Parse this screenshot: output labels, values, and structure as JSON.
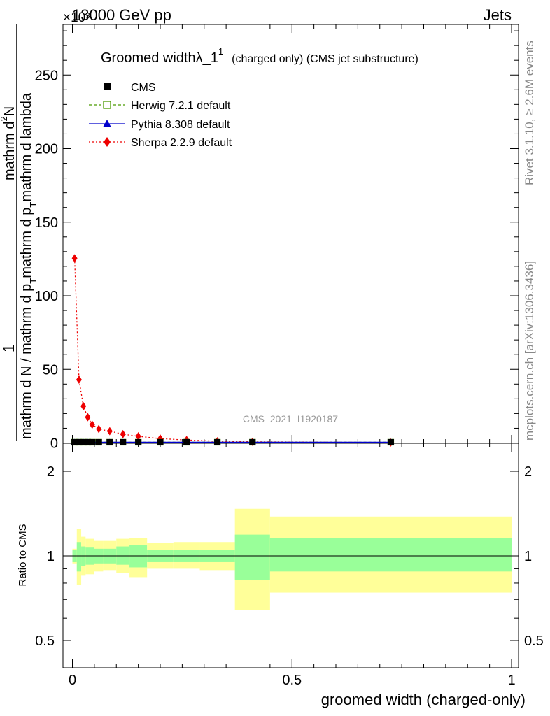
{
  "header": {
    "left": "13000 GeV pp",
    "right": "Jets",
    "exponent": "×10³"
  },
  "side_text": {
    "rivet": "Rivet 3.1.10, ≥ 2.6M events",
    "mcplots": "mcplots.cern.ch [arXiv:1306.3436]"
  },
  "watermark": "CMS_2021_I1920187",
  "chart_data": [
    {
      "type": "line",
      "title": "Groomed widthλ_1¹ (charged only) (CMS jet substructure)",
      "title_main": "Groomed widthλ_1",
      "title_sup": "1",
      "title_rest": "(charged only) (CMS jet substructure)",
      "ylabel_top": "1",
      "ylabel_numerator": "mathrm d²N",
      "ylabel_numerator_lines": [
        "mathrm d",
        "N"
      ],
      "ylabel_numerator_sup": "2",
      "ylabel_denominator": "mathrm d N / mathrm d p_T mathrm d p_T mathrm d lambda",
      "ylabel_denominator_line1": "mathrm d N / mathrm d p",
      "ylabel_denominator_line2": "mathrm d p",
      "ylabel_denominator_line2_tail": "mathrm d lambda",
      "ylabel_sub": "T",
      "xlim": [
        0,
        1
      ],
      "ylim": [
        0,
        285
      ],
      "y_ticks": [
        "0",
        "50",
        "100",
        "150",
        "200",
        "250"
      ],
      "legend_position": "top-left",
      "series": [
        {
          "name": "CMS",
          "color": "#000000",
          "marker": "square-filled",
          "x": [
            0.005,
            0.015,
            0.025,
            0.035,
            0.045,
            0.06,
            0.085,
            0.115,
            0.15,
            0.2,
            0.26,
            0.33,
            0.41,
            0.725
          ],
          "y": [
            0.5,
            0.5,
            0.5,
            0.5,
            0.5,
            0.5,
            0.5,
            0.5,
            0.5,
            0.5,
            0.5,
            0.5,
            0.5,
            0.5
          ]
        },
        {
          "name": "Herwig 7.2.1 default",
          "color": "#4a9a00",
          "marker": "square-open",
          "line": "dashed",
          "x": [
            0.005,
            0.015,
            0.025,
            0.035,
            0.045,
            0.06,
            0.085,
            0.115,
            0.15,
            0.2,
            0.26,
            0.33,
            0.41,
            0.725
          ],
          "y": [
            0.5,
            0.5,
            0.5,
            0.5,
            0.5,
            0.5,
            0.5,
            0.5,
            0.5,
            0.5,
            0.5,
            0.5,
            0.5,
            0.5
          ]
        },
        {
          "name": "Pythia 8.308 default",
          "color": "#0000cc",
          "marker": "triangle-filled",
          "line": "solid",
          "x": [
            0.005,
            0.015,
            0.025,
            0.035,
            0.045,
            0.06,
            0.085,
            0.115,
            0.15,
            0.2,
            0.26,
            0.33,
            0.41,
            0.725
          ],
          "y": [
            0.5,
            0.5,
            0.5,
            0.5,
            0.5,
            0.5,
            0.5,
            0.5,
            0.5,
            0.5,
            0.5,
            0.5,
            0.5,
            0.5
          ]
        },
        {
          "name": "Sherpa 2.2.9 default",
          "color": "#ee0000",
          "marker": "diamond-filled",
          "line": "dotted",
          "x": [
            0.005,
            0.015,
            0.025,
            0.035,
            0.045,
            0.06,
            0.085,
            0.115,
            0.15,
            0.2,
            0.26,
            0.33,
            0.41,
            0.725
          ],
          "y": [
            125.5,
            43,
            25,
            17.5,
            12.5,
            9.5,
            8,
            6,
            4.5,
            3,
            2,
            1.2,
            0.8,
            0.3
          ]
        }
      ]
    },
    {
      "type": "area",
      "ylabel": "Ratio to CMS",
      "xlabel": "groomed width (charged-only)",
      "xlim": [
        -0.025,
        1.015
      ],
      "x_ticks": [
        "0",
        "0.5",
        "1"
      ],
      "ylim": [
        0.4,
        2.4
      ],
      "y_log": true,
      "y_ticks": [
        "0.5",
        "1",
        "2"
      ],
      "reference_line": 1,
      "band_colors": {
        "inner": "#99ff99",
        "outer": "#ffff99"
      },
      "bins": [
        {
          "x0": 0.0,
          "x1": 0.01,
          "inner": [
            0.95,
            1.05
          ],
          "outer": [
            0.94,
            1.06
          ]
        },
        {
          "x0": 0.01,
          "x1": 0.02,
          "inner": [
            0.88,
            1.12
          ],
          "outer": [
            0.79,
            1.25
          ]
        },
        {
          "x0": 0.02,
          "x1": 0.03,
          "inner": [
            0.92,
            1.08
          ],
          "outer": [
            0.85,
            1.17
          ]
        },
        {
          "x0": 0.03,
          "x1": 0.05,
          "inner": [
            0.93,
            1.07
          ],
          "outer": [
            0.86,
            1.15
          ]
        },
        {
          "x0": 0.05,
          "x1": 0.07,
          "inner": [
            0.94,
            1.06
          ],
          "outer": [
            0.88,
            1.13
          ]
        },
        {
          "x0": 0.07,
          "x1": 0.1,
          "inner": [
            0.94,
            1.06
          ],
          "outer": [
            0.89,
            1.13
          ]
        },
        {
          "x0": 0.1,
          "x1": 0.13,
          "inner": [
            0.93,
            1.08
          ],
          "outer": [
            0.87,
            1.15
          ]
        },
        {
          "x0": 0.13,
          "x1": 0.17,
          "inner": [
            0.91,
            1.09
          ],
          "outer": [
            0.84,
            1.16
          ]
        },
        {
          "x0": 0.17,
          "x1": 0.23,
          "inner": [
            0.95,
            1.05
          ],
          "outer": [
            0.9,
            1.11
          ]
        },
        {
          "x0": 0.23,
          "x1": 0.29,
          "inner": [
            0.95,
            1.05
          ],
          "outer": [
            0.9,
            1.12
          ]
        },
        {
          "x0": 0.29,
          "x1": 0.37,
          "inner": [
            0.95,
            1.05
          ],
          "outer": [
            0.89,
            1.12
          ]
        },
        {
          "x0": 0.37,
          "x1": 0.45,
          "inner": [
            0.82,
            1.19
          ],
          "outer": [
            0.64,
            1.47
          ]
        },
        {
          "x0": 0.45,
          "x1": 1.0,
          "inner": [
            0.88,
            1.16
          ],
          "outer": [
            0.74,
            1.38
          ]
        }
      ]
    }
  ]
}
